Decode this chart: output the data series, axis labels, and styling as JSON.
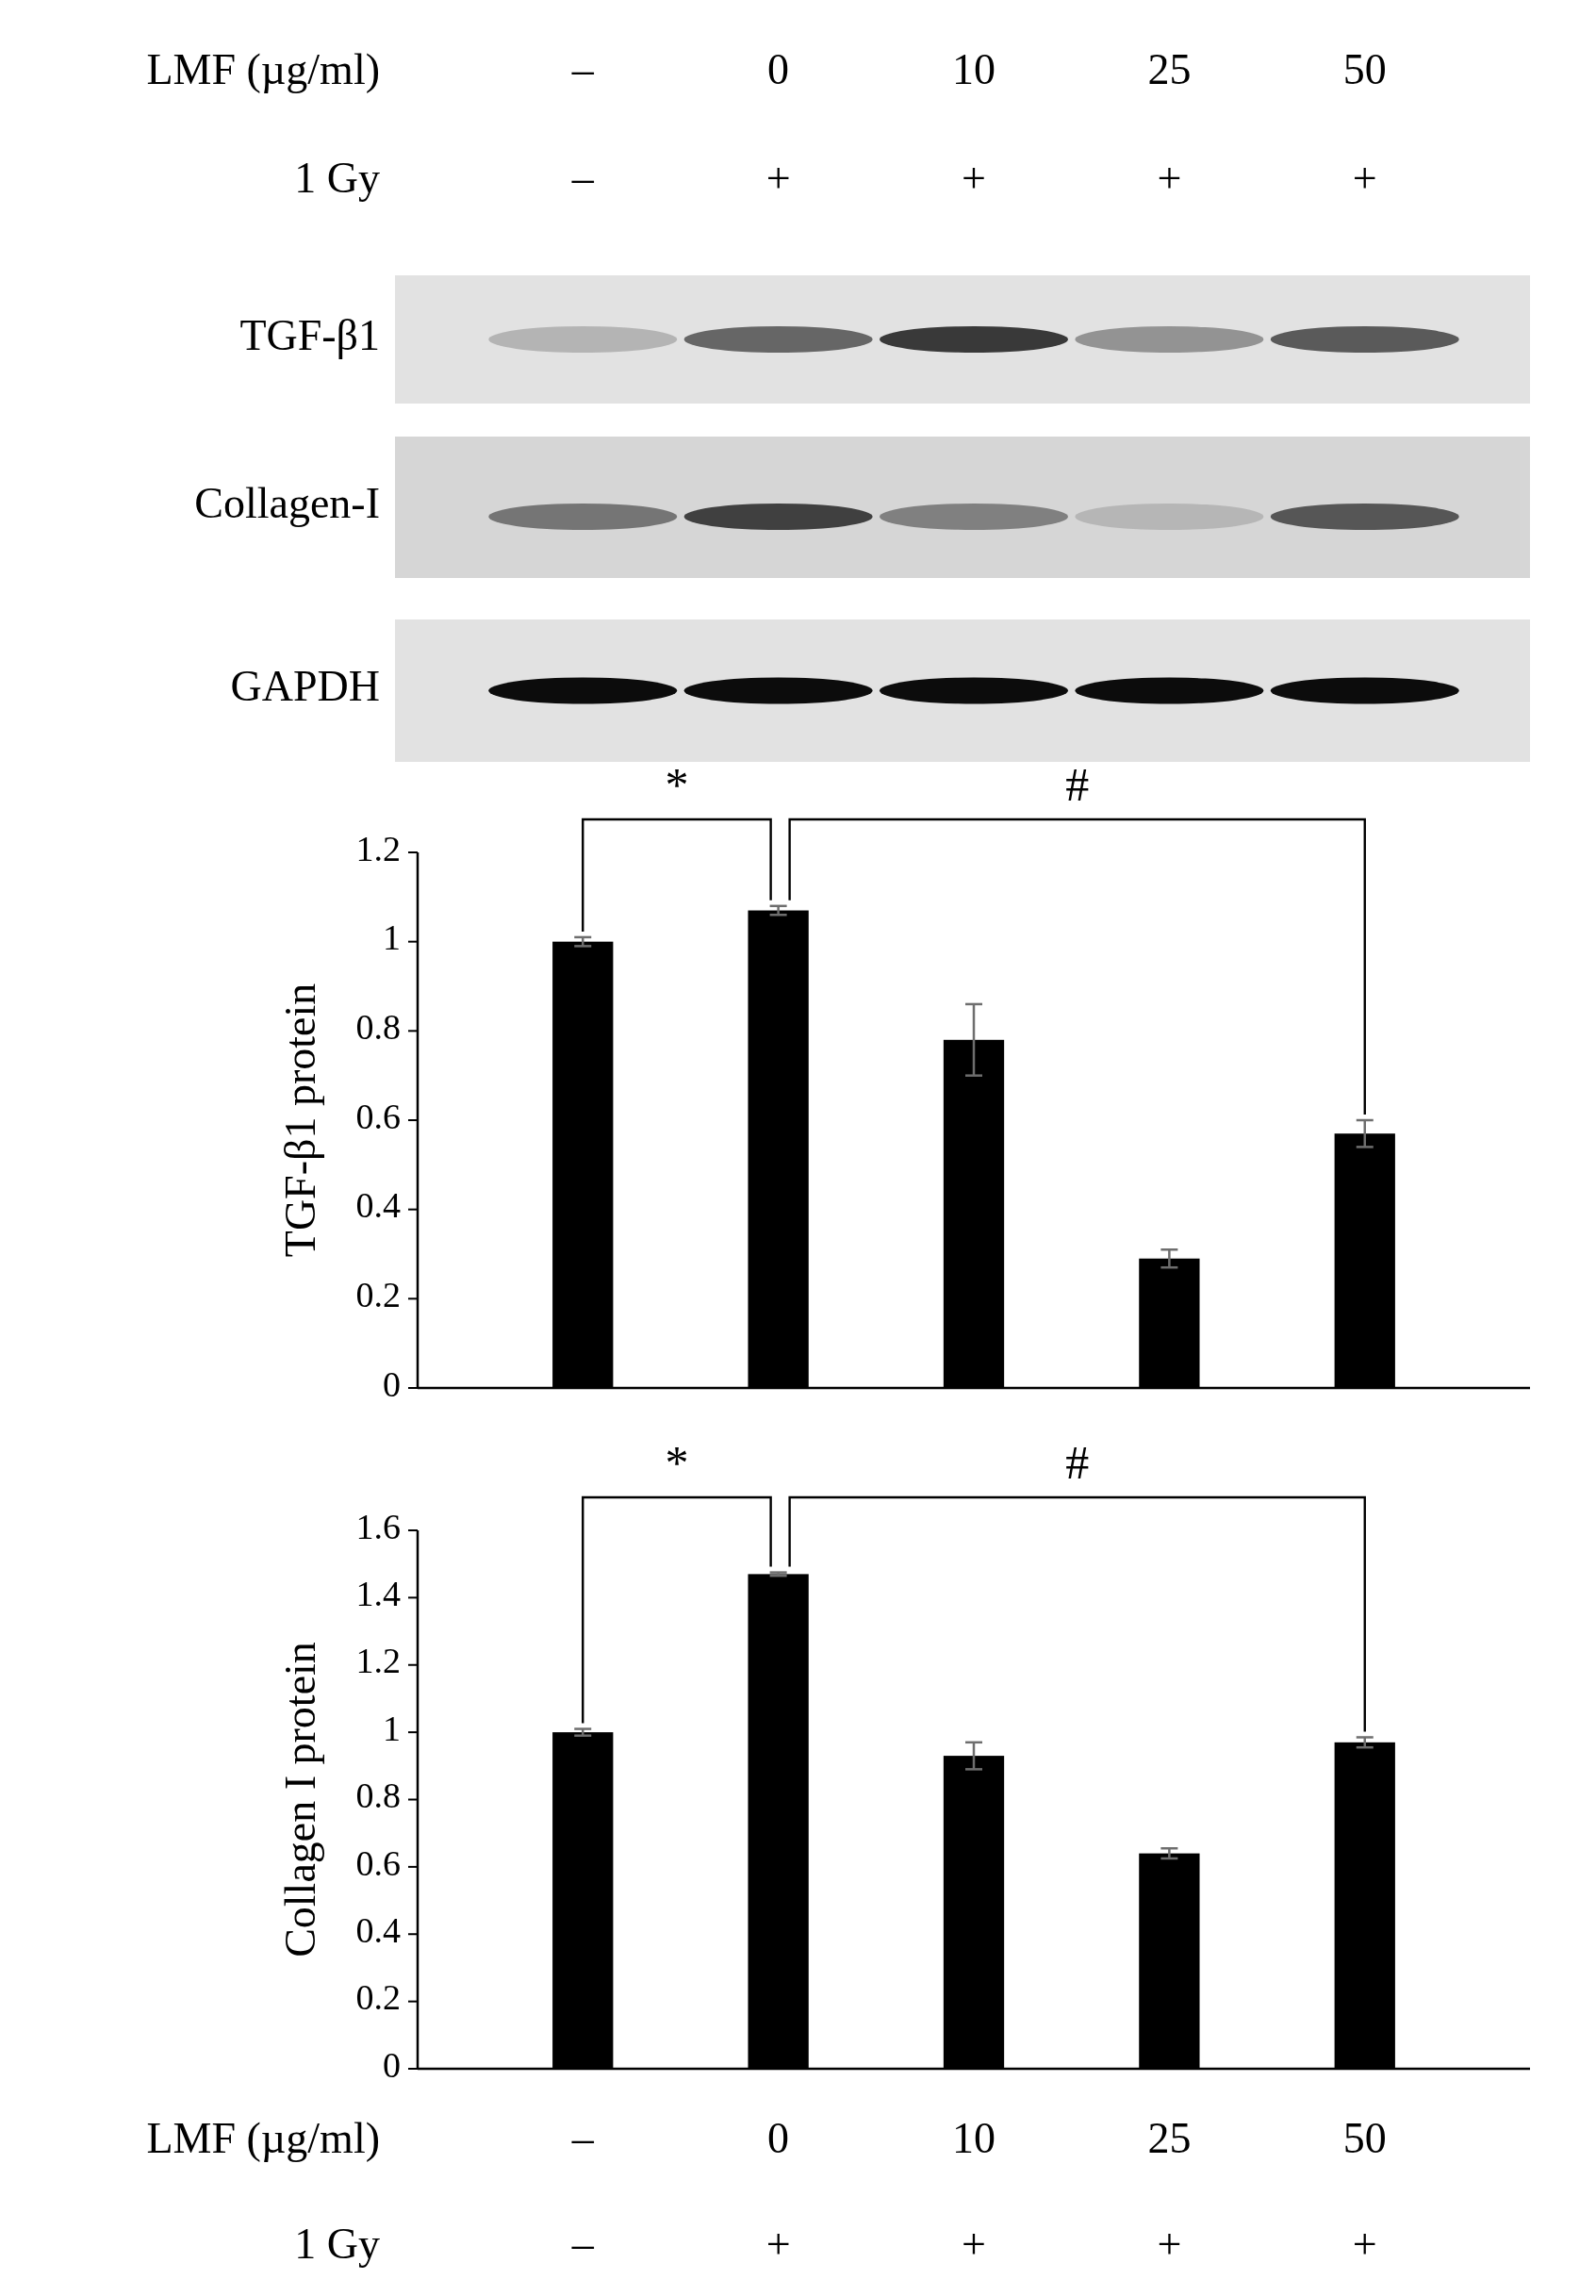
{
  "chart_data": [
    {
      "type": "other",
      "annotations": [
        "LMF (µg/ml)",
        "–",
        "0",
        "10",
        "25",
        "50",
        "1 Gy",
        "–",
        "+",
        "+",
        "+",
        "+",
        "TGF-β1",
        "Collagen-I",
        "GAPDH"
      ]
    },
    {
      "type": "bar",
      "ylabel": "TGF-β1 protein",
      "categories": [
        null,
        null,
        null,
        null,
        null
      ],
      "values": [
        1.0,
        1.07,
        0.78,
        0.29,
        0.57
      ],
      "errors": [
        0.01,
        0.01,
        0.08,
        0.02,
        0.03
      ],
      "color": "#000000",
      "ylim": [
        0,
        1.2
      ],
      "yticks": [
        0,
        0.2,
        0.4,
        0.6,
        0.8,
        1,
        1.2
      ],
      "tick_labels": "y",
      "grid": false,
      "annotations": [
        "*",
        "#"
      ]
    },
    {
      "type": "bar",
      "xlabel": "LMF (µg/ml)",
      "ylabel": "Collagen I protein",
      "categories": [
        "–",
        "0",
        "10",
        "25",
        "50"
      ],
      "values": [
        1.0,
        1.47,
        0.93,
        0.64,
        0.97
      ],
      "errors": [
        0.01,
        0.005,
        0.04,
        0.015,
        0.015
      ],
      "color": "#000000",
      "ylim": [
        0,
        1.6
      ],
      "yticks": [
        0,
        0.2,
        0.4,
        0.6,
        0.8,
        1,
        1.2,
        1.4,
        1.6
      ],
      "grid": false,
      "annotations": [
        "*",
        "#",
        "1 Gy",
        "–",
        "+",
        "+",
        "+",
        "+"
      ]
    }
  ]
}
